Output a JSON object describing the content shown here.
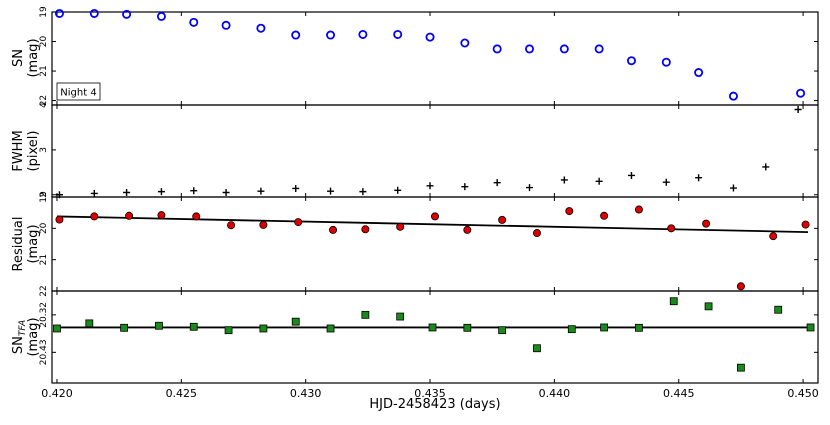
{
  "chart_data": {
    "x_axis": {
      "label": "HJD-2458423 (days)",
      "lim": [
        0.4198,
        0.4506
      ],
      "ticks": [
        0.42,
        0.425,
        0.43,
        0.435,
        0.44,
        0.445,
        0.45
      ],
      "tick_labels": [
        "0.420",
        "0.425",
        "0.430",
        "0.435",
        "0.440",
        "0.445",
        "0.450"
      ]
    },
    "panels": [
      {
        "id": "sn",
        "type": "scatter",
        "ylabel": [
          "SN",
          "(mag)"
        ],
        "ylim": [
          19,
          22.15
        ],
        "y_inverted": true,
        "yticks": [
          19,
          20,
          21,
          22
        ],
        "ytick_labels": [
          "19",
          "20",
          "21",
          "22"
        ],
        "marker": "circle-open",
        "color": "#0000ff",
        "annotation": "Night 4",
        "x": [
          0.4201,
          0.4215,
          0.4228,
          0.4242,
          0.4255,
          0.4268,
          0.4282,
          0.4296,
          0.431,
          0.4323,
          0.4337,
          0.435,
          0.4364,
          0.4377,
          0.439,
          0.4404,
          0.4418,
          0.4431,
          0.4445,
          0.4458,
          0.4472,
          0.4499
        ],
        "y": [
          19.05,
          19.05,
          19.08,
          19.15,
          19.35,
          19.45,
          19.55,
          19.78,
          19.78,
          19.76,
          19.76,
          19.85,
          20.05,
          20.25,
          20.25,
          20.25,
          20.25,
          20.65,
          20.7,
          21.05,
          21.85,
          21.75
        ]
      },
      {
        "id": "fwhm",
        "type": "scatter",
        "ylabel": [
          "FWHM",
          "(pixel)"
        ],
        "ylim": [
          1.95,
          4.0
        ],
        "y_inverted": false,
        "yticks": [
          2,
          3,
          4
        ],
        "ytick_labels": [
          "2",
          "3",
          "4"
        ],
        "marker": "plus",
        "color": "#000000",
        "x": [
          0.4201,
          0.4215,
          0.4228,
          0.4242,
          0.4255,
          0.4268,
          0.4282,
          0.4296,
          0.431,
          0.4323,
          0.4337,
          0.435,
          0.4364,
          0.4377,
          0.439,
          0.4404,
          0.4418,
          0.4431,
          0.4445,
          0.4458,
          0.4472,
          0.4485,
          0.4498
        ],
        "y": [
          2.0,
          2.03,
          2.05,
          2.07,
          2.09,
          2.05,
          2.08,
          2.14,
          2.08,
          2.07,
          2.1,
          2.2,
          2.18,
          2.27,
          2.16,
          2.33,
          2.3,
          2.43,
          2.28,
          2.38,
          2.15,
          2.62,
          3.9
        ]
      },
      {
        "id": "residual",
        "type": "scatter+fit",
        "ylabel": [
          "Residual",
          "(mag)"
        ],
        "ylim": [
          19,
          22
        ],
        "y_inverted": true,
        "yticks": [
          19,
          20,
          21,
          22
        ],
        "ytick_labels": [
          "19",
          "20",
          "21",
          "22"
        ],
        "marker": "circle-filled",
        "color": "#dd0000",
        "fit_line": {
          "x": [
            0.42,
            0.4502
          ],
          "y": [
            19.62,
            20.12
          ]
        },
        "x": [
          0.4201,
          0.4215,
          0.4229,
          0.4242,
          0.4256,
          0.427,
          0.4283,
          0.4297,
          0.4311,
          0.4324,
          0.4338,
          0.4352,
          0.4365,
          0.4379,
          0.4393,
          0.4406,
          0.442,
          0.4434,
          0.4447,
          0.4461,
          0.4475,
          0.4488,
          0.4501
        ],
        "y": [
          19.72,
          19.62,
          19.6,
          19.58,
          19.62,
          19.9,
          19.89,
          19.8,
          20.05,
          20.03,
          19.95,
          19.62,
          20.05,
          19.73,
          20.15,
          19.45,
          19.6,
          19.4,
          20.0,
          19.85,
          21.85,
          20.25,
          19.88
        ]
      },
      {
        "id": "sn-tfa",
        "type": "scatter+fit",
        "ylabel_main": "SN",
        "ylabel_sub": "TFA",
        "ylabel_unit": "(mag)",
        "ylim": [
          20.25,
          20.52
        ],
        "y_inverted": true,
        "yticks": [
          20.32,
          20.43
        ],
        "ytick_labels": [
          "20.32",
          "20.43"
        ],
        "marker": "square-filled",
        "color": "#1a8a1a",
        "fit_line": {
          "x": [
            0.42,
            0.4504
          ],
          "y": [
            20.357,
            20.357
          ]
        },
        "x": [
          0.42,
          0.4213,
          0.4227,
          0.4241,
          0.4255,
          0.4269,
          0.4283,
          0.4296,
          0.431,
          0.4324,
          0.4338,
          0.4351,
          0.4365,
          0.4379,
          0.4393,
          0.4407,
          0.442,
          0.4434,
          0.4448,
          0.4462,
          0.4475,
          0.449,
          0.4503
        ],
        "y": [
          20.36,
          20.345,
          20.358,
          20.352,
          20.355,
          20.365,
          20.36,
          20.34,
          20.36,
          20.32,
          20.325,
          20.357,
          20.358,
          20.365,
          20.418,
          20.362,
          20.357,
          20.358,
          20.28,
          20.295,
          20.475,
          20.305,
          20.357
        ]
      }
    ]
  }
}
